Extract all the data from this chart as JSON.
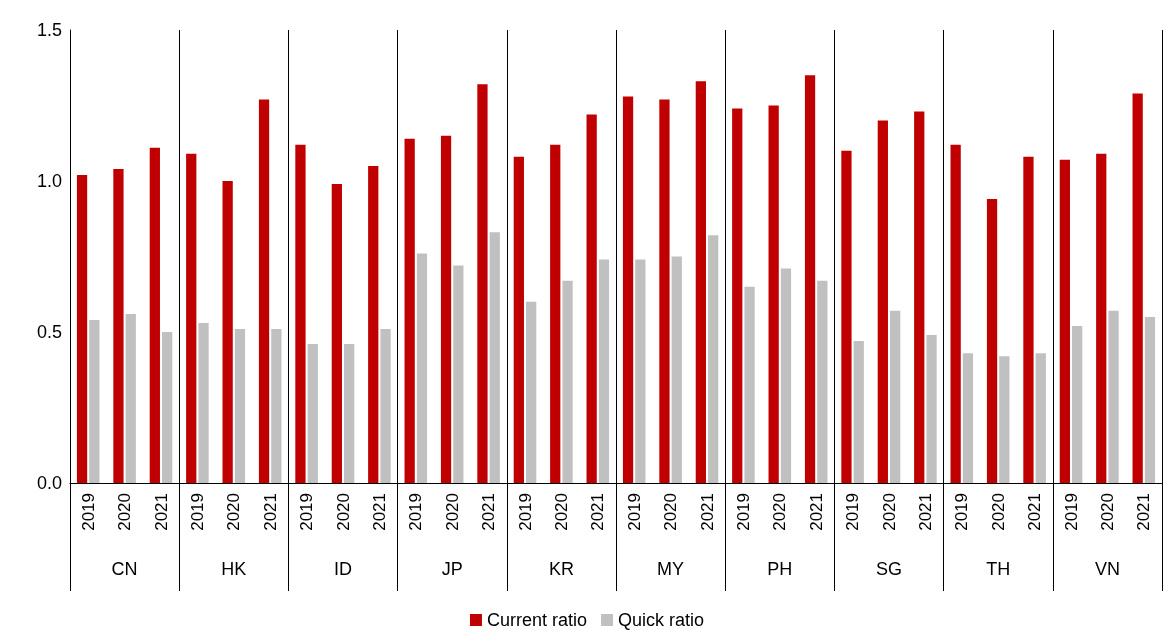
{
  "chart_data": {
    "type": "bar",
    "categories": [
      "2019",
      "2020",
      "2021",
      "2019",
      "2020",
      "2021",
      "2019",
      "2020",
      "2021",
      "2019",
      "2020",
      "2021",
      "2019",
      "2020",
      "2021",
      "2019",
      "2020",
      "2021",
      "2019",
      "2020",
      "2021",
      "2019",
      "2020",
      "2021",
      "2019",
      "2020",
      "2021",
      "2019",
      "2020",
      "2021"
    ],
    "annotations": [
      "CN",
      "HK",
      "ID",
      "JP",
      "KR",
      "MY",
      "PH",
      "SG",
      "TH",
      "VN"
    ],
    "series": [
      {
        "name": "Current ratio",
        "color": "#c00000",
        "values": [
          1.02,
          1.04,
          1.11,
          1.09,
          1.0,
          1.27,
          1.12,
          0.99,
          1.05,
          1.14,
          1.15,
          1.32,
          1.08,
          1.12,
          1.22,
          1.28,
          1.27,
          1.33,
          1.24,
          1.25,
          1.35,
          1.1,
          1.2,
          1.23,
          1.12,
          0.94,
          1.08,
          1.07,
          1.09,
          1.29
        ]
      },
      {
        "name": "Quick ratio",
        "color": "#c0c0c0",
        "values": [
          0.54,
          0.56,
          0.5,
          0.53,
          0.51,
          0.51,
          0.46,
          0.46,
          0.51,
          0.76,
          0.72,
          0.83,
          0.6,
          0.67,
          0.74,
          0.74,
          0.75,
          0.82,
          0.65,
          0.71,
          0.67,
          0.47,
          0.57,
          0.49,
          0.43,
          0.42,
          0.43,
          0.52,
          0.57,
          0.55
        ]
      }
    ],
    "ylim": [
      0,
      1.5
    ],
    "yticks": [
      {
        "value": 0,
        "label": "0.0"
      },
      {
        "value": 0.5,
        "label": "0.5"
      },
      {
        "value": 1,
        "label": "1.0"
      },
      {
        "value": 1.5,
        "label": "1.5"
      }
    ],
    "grid": false,
    "legend": "bottom"
  }
}
